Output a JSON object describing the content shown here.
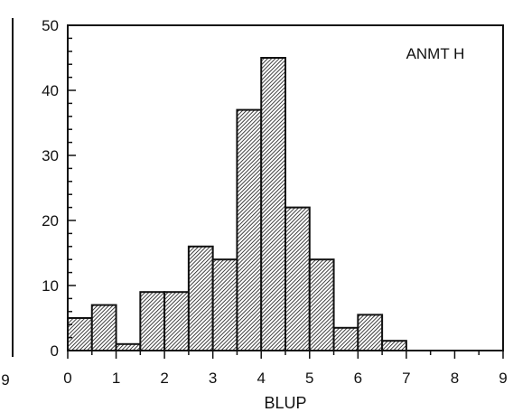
{
  "chart_data": {
    "type": "bar",
    "title": "",
    "xlabel": "BLUP",
    "ylabel": "",
    "annotation": "ANMT H",
    "xlim": [
      0,
      9
    ],
    "ylim": [
      0,
      50
    ],
    "x_ticks": [
      "0",
      "1",
      "2",
      "3",
      "4",
      "5",
      "6",
      "7",
      "8",
      "9"
    ],
    "y_ticks": [
      "0",
      "10",
      "20",
      "30",
      "40",
      "50"
    ],
    "bin_width": 0.5,
    "bin_starts": [
      0,
      0.5,
      1.0,
      1.5,
      2.0,
      2.5,
      3.0,
      3.5,
      4.0,
      4.5,
      5.0,
      5.5,
      6.0,
      6.5
    ],
    "values": [
      5,
      7,
      1,
      9,
      9,
      16,
      14,
      37,
      45,
      22,
      14,
      3.5,
      5.5,
      1.5
    ],
    "left_clip_label": "9",
    "grid": false,
    "bar_fill": "diagonal-hatch",
    "colors": {
      "bar_stroke": "#111111",
      "hatch": "#111111",
      "background": "#ffffff"
    }
  }
}
